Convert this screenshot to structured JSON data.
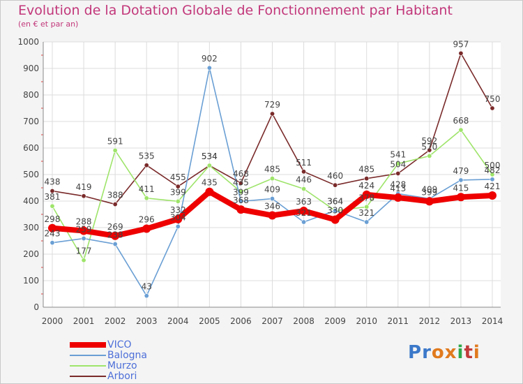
{
  "header": {
    "title": "Evolution de la Dotation Globale de Fonctionnement par Habitant",
    "subtitle": "(en € et par an)"
  },
  "logo": {
    "text": "Proxiti"
  },
  "colors": {
    "title": "#c2377a",
    "vico": "#ee0000",
    "balogna": "#6a9fd4",
    "murzo": "#9ee46a",
    "arbori": "#7a2a2a",
    "grid": "#dcdcdc",
    "axis_text": "#444444"
  },
  "chart_data": {
    "type": "line",
    "title": "Evolution de la Dotation Globale de Fonctionnement par Habitant",
    "subtitle": "(en € et par an)",
    "xlabel": "",
    "ylabel": "",
    "ylim": [
      0,
      1000
    ],
    "yticks": [
      0,
      100,
      200,
      300,
      400,
      500,
      600,
      700,
      800,
      900,
      1000
    ],
    "grid": true,
    "legend_position": "bottom-left",
    "x": [
      2000,
      2001,
      2002,
      2003,
      2004,
      2005,
      2006,
      2007,
      2008,
      2009,
      2010,
      2011,
      2012,
      2013,
      2014
    ],
    "series": [
      {
        "name": "VICO",
        "color": "#ee0000",
        "values": [
          298,
          288,
          269,
          296,
          332,
          435,
          368,
          346,
          363,
          330,
          424,
          413,
          399,
          415,
          421
        ]
      },
      {
        "name": "Balogna",
        "color": "#6a9fd4",
        "values": [
          243,
          259,
          238,
          43,
          304,
          902,
          399,
          409,
          321,
          364,
          321,
          428,
          409,
          479,
          482
        ]
      },
      {
        "name": "Murzo",
        "color": "#9ee46a",
        "values": [
          381,
          177,
          591,
          411,
          399,
          534,
          435,
          485,
          446,
          364,
          378,
          541,
          570,
          668,
          500
        ]
      },
      {
        "name": "Arbori",
        "color": "#7a2a2a",
        "values": [
          438,
          419,
          388,
          535,
          455,
          534,
          468,
          729,
          511,
          460,
          485,
          504,
          592,
          957,
          750
        ]
      }
    ]
  }
}
